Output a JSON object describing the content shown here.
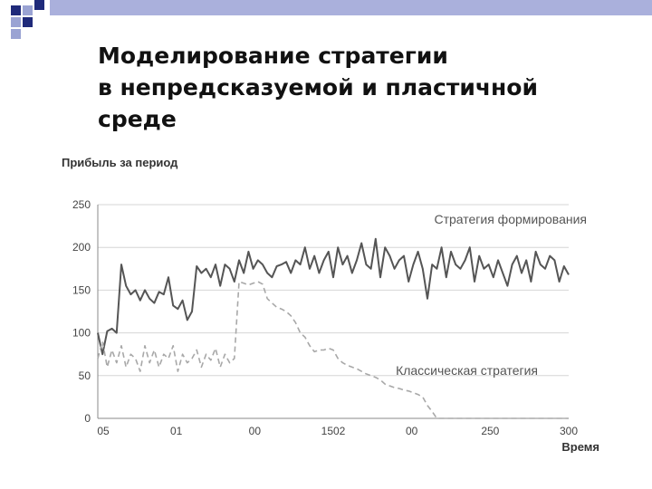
{
  "slide": {
    "title_lines": [
      "Моделирование стратегии",
      "в непредсказуемой и пластичной",
      "среде"
    ],
    "colors": {
      "square_dark": "#1f2a7a",
      "square_light": "#9aa3d3",
      "header_band": "#aab0dc"
    }
  },
  "chart_data": {
    "type": "line",
    "ylabel": "Прибыль за период",
    "xlabel": "Время",
    "ylim": [
      0,
      250
    ],
    "y_ticks": [
      0,
      50,
      100,
      150,
      200,
      250
    ],
    "x_tick_labels": [
      "05",
      "01",
      "00",
      "1502",
      "00",
      "250",
      "300"
    ],
    "grid": true,
    "series": [
      {
        "name": "Стратегия формирования",
        "color": "#555555",
        "dash": "solid",
        "x": [
          0,
          3,
          6,
          9,
          12,
          15,
          18,
          21,
          24,
          27,
          30,
          33,
          36,
          39,
          42,
          45,
          48,
          51,
          54,
          57,
          60,
          63,
          66,
          69,
          72,
          75,
          78,
          81,
          84,
          87,
          90,
          93,
          96,
          99,
          102,
          105,
          108,
          111,
          114,
          117,
          120,
          123,
          126,
          129,
          132,
          135,
          138,
          141,
          144,
          147,
          150,
          153,
          156,
          159,
          162,
          165,
          168,
          171,
          174,
          177,
          180,
          183,
          186,
          189,
          192,
          195,
          198,
          201,
          204,
          207,
          210,
          213,
          216,
          219,
          222,
          225,
          228,
          231,
          234,
          237,
          240,
          243,
          246,
          249,
          252,
          255,
          258,
          261,
          264,
          267,
          270,
          273,
          276,
          279,
          282,
          285,
          288,
          291,
          294,
          297,
          300
        ],
        "values": [
          100,
          75,
          102,
          105,
          100,
          180,
          155,
          145,
          150,
          138,
          150,
          140,
          135,
          148,
          145,
          165,
          132,
          128,
          138,
          115,
          125,
          178,
          170,
          175,
          165,
          180,
          155,
          180,
          175,
          160,
          185,
          170,
          195,
          175,
          185,
          180,
          170,
          165,
          178,
          180,
          183,
          170,
          185,
          180,
          200,
          175,
          190,
          170,
          185,
          195,
          165,
          200,
          180,
          190,
          170,
          185,
          205,
          180,
          175,
          210,
          165,
          200,
          190,
          175,
          185,
          190,
          160,
          180,
          195,
          175,
          140,
          180,
          175,
          200,
          165,
          195,
          180,
          175,
          185,
          200,
          160,
          190,
          175,
          180,
          165,
          185,
          170,
          155,
          180,
          190,
          170,
          185,
          160,
          195,
          180,
          175,
          190,
          185,
          160,
          178,
          168
        ]
      },
      {
        "name": "Классическая стратегия",
        "color": "#a8a8a8",
        "dash": "dashed",
        "x": [
          0,
          3,
          6,
          9,
          12,
          15,
          18,
          21,
          24,
          27,
          30,
          33,
          36,
          39,
          42,
          45,
          48,
          51,
          54,
          57,
          60,
          63,
          66,
          69,
          72,
          75,
          78,
          81,
          84,
          87,
          90,
          93,
          96,
          99,
          102,
          105,
          108,
          111,
          114,
          117,
          120,
          123,
          126,
          129,
          132,
          135,
          138,
          141,
          144,
          147,
          150,
          153,
          156,
          159,
          162,
          165,
          168,
          171,
          174,
          177,
          180,
          183,
          186,
          189,
          192,
          195,
          198,
          201,
          204,
          207,
          210,
          213,
          216,
          219,
          222,
          225,
          228,
          231,
          234,
          237,
          240,
          243,
          246,
          249,
          252,
          255,
          258,
          261,
          264,
          267,
          270,
          273,
          276,
          279,
          282,
          285,
          288,
          291,
          294,
          297,
          300
        ],
        "values": [
          70,
          90,
          60,
          80,
          65,
          85,
          60,
          75,
          70,
          55,
          85,
          65,
          80,
          60,
          75,
          70,
          85,
          55,
          75,
          65,
          70,
          80,
          60,
          75,
          68,
          82,
          60,
          75,
          65,
          70,
          160,
          158,
          156,
          158,
          160,
          157,
          140,
          135,
          130,
          128,
          125,
          120,
          112,
          100,
          95,
          85,
          78,
          80,
          80,
          82,
          80,
          70,
          65,
          62,
          60,
          58,
          55,
          52,
          50,
          48,
          45,
          40,
          38,
          36,
          35,
          33,
          32,
          30,
          28,
          25,
          15,
          8,
          0,
          0,
          0,
          0,
          0,
          0,
          0,
          0,
          0,
          0,
          0,
          0,
          0,
          0,
          0,
          0,
          0,
          0,
          0,
          0,
          0,
          0,
          0,
          0,
          0,
          0,
          0,
          0,
          0
        ]
      }
    ]
  }
}
